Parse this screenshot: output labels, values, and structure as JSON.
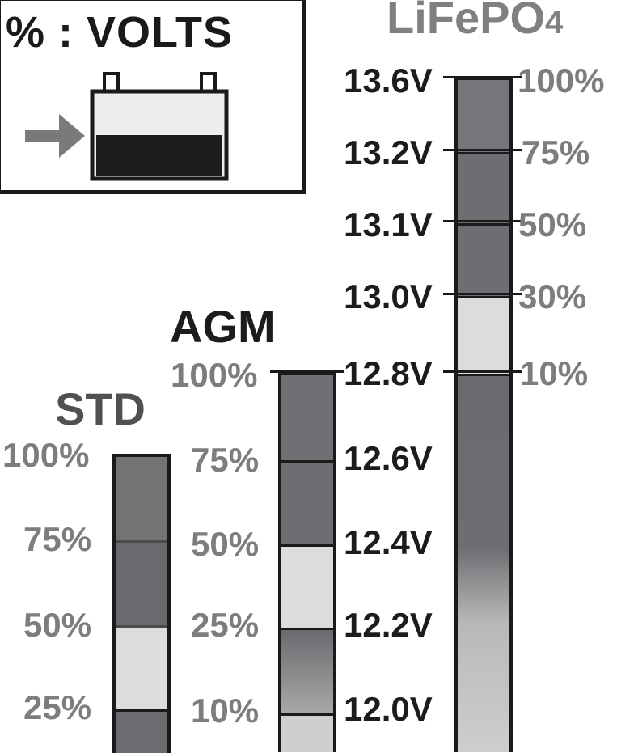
{
  "legend": {
    "title": "% : VOLTS",
    "battery_icon": "battery-level-icon",
    "arrow_icon": "arrow-right-icon"
  },
  "std": {
    "title": "STD",
    "levels": [
      "100%",
      "75%",
      "50%",
      "25%"
    ]
  },
  "agm": {
    "title": "AGM",
    "levels": [
      "100%",
      "75%",
      "50%",
      "25%",
      "10%"
    ]
  },
  "lifepo4": {
    "title_main": "LiFePO",
    "title_sub": "4",
    "levels": [
      "100%",
      "75%",
      "50%",
      "30%",
      "10%"
    ]
  },
  "voltages": [
    "13.6V",
    "13.2V",
    "13.1V",
    "13.0V",
    "12.8V",
    "12.6V",
    "12.4V",
    "12.2V",
    "12.0V"
  ],
  "colors": {
    "dark_fill": "#707074",
    "light_fill": "#dcdcdc",
    "outline": "#1a1a1a"
  }
}
